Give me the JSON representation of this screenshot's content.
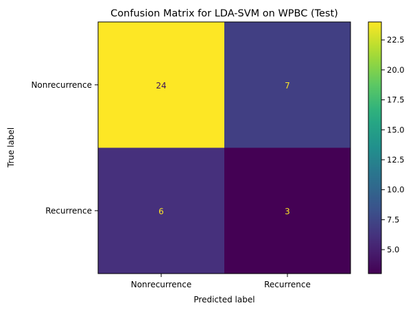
{
  "chart_data": {
    "type": "heatmap",
    "title": "Confusion Matrix for LDA-SVM on WPBC (Test)",
    "xlabel": "Predicted label",
    "ylabel": "True label",
    "x_categories": [
      "Nonrecurrence",
      "Recurrence"
    ],
    "y_categories": [
      "Nonrecurrence",
      "Recurrence"
    ],
    "values": [
      [
        24,
        7
      ],
      [
        6,
        3
      ]
    ],
    "colormap": "viridis",
    "color_range": [
      3,
      24
    ],
    "colorbar_ticks": [
      "5.0",
      "7.5",
      "10.0",
      "12.5",
      "15.0",
      "17.5",
      "20.0",
      "22.5"
    ],
    "colorbar_tick_values": [
      5.0,
      7.5,
      10.0,
      12.5,
      15.0,
      17.5,
      20.0,
      22.5
    ],
    "grid": false
  }
}
